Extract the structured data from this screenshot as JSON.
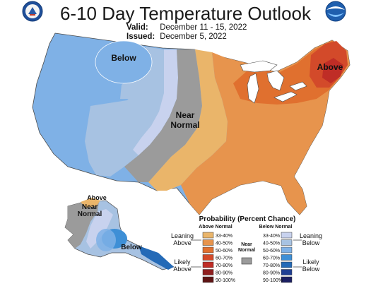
{
  "header": {
    "title": "6-10 Day Temperature Outlook",
    "valid_label": "Valid:",
    "valid_value": "December 11 - 15, 2022",
    "issued_label": "Issued:",
    "issued_value": "December 5, 2022"
  },
  "logos": {
    "left": "commerce-seal-icon",
    "right": "noaa-logo-icon"
  },
  "map_labels": {
    "below": "Below",
    "near_normal_1": "Near",
    "near_normal_2": "Normal",
    "above": "Above",
    "ak_above": "Above",
    "ak_near_1": "Near",
    "ak_near_2": "Normal",
    "ak_below": "Below"
  },
  "legend": {
    "title": "Probability (Percent Chance)",
    "above_header": "Above Normal",
    "below_header": "Below Normal",
    "near_normal_1": "Near",
    "near_normal_2": "Normal",
    "leaning_above_1": "Leaning",
    "leaning_above_2": "Above",
    "likely_above_1": "Likely",
    "likely_above_2": "Above",
    "leaning_below_1": "Leaning",
    "leaning_below_2": "Below",
    "likely_below_1": "Likely",
    "likely_below_2": "Below",
    "above_bins": [
      {
        "label": "33-40%",
        "color": "#eab56a"
      },
      {
        "label": "40-50%",
        "color": "#e7944d"
      },
      {
        "label": "50-60%",
        "color": "#e0702f"
      },
      {
        "label": "60-70%",
        "color": "#d34a2a"
      },
      {
        "label": "70-80%",
        "color": "#bf2d26"
      },
      {
        "label": "80-90%",
        "color": "#8f1f1f"
      },
      {
        "label": "90-100%",
        "color": "#5e1414"
      }
    ],
    "below_bins": [
      {
        "label": "33-40%",
        "color": "#c8d2ee"
      },
      {
        "label": "40-50%",
        "color": "#a7c2e2"
      },
      {
        "label": "50-60%",
        "color": "#7fb1e6"
      },
      {
        "label": "60-70%",
        "color": "#3e8fd6"
      },
      {
        "label": "70-80%",
        "color": "#246ab7"
      },
      {
        "label": "80-90%",
        "color": "#1f3f93"
      },
      {
        "label": "90-100%",
        "color": "#1b1f63"
      }
    ],
    "near_color": "#9b9b9b"
  }
}
